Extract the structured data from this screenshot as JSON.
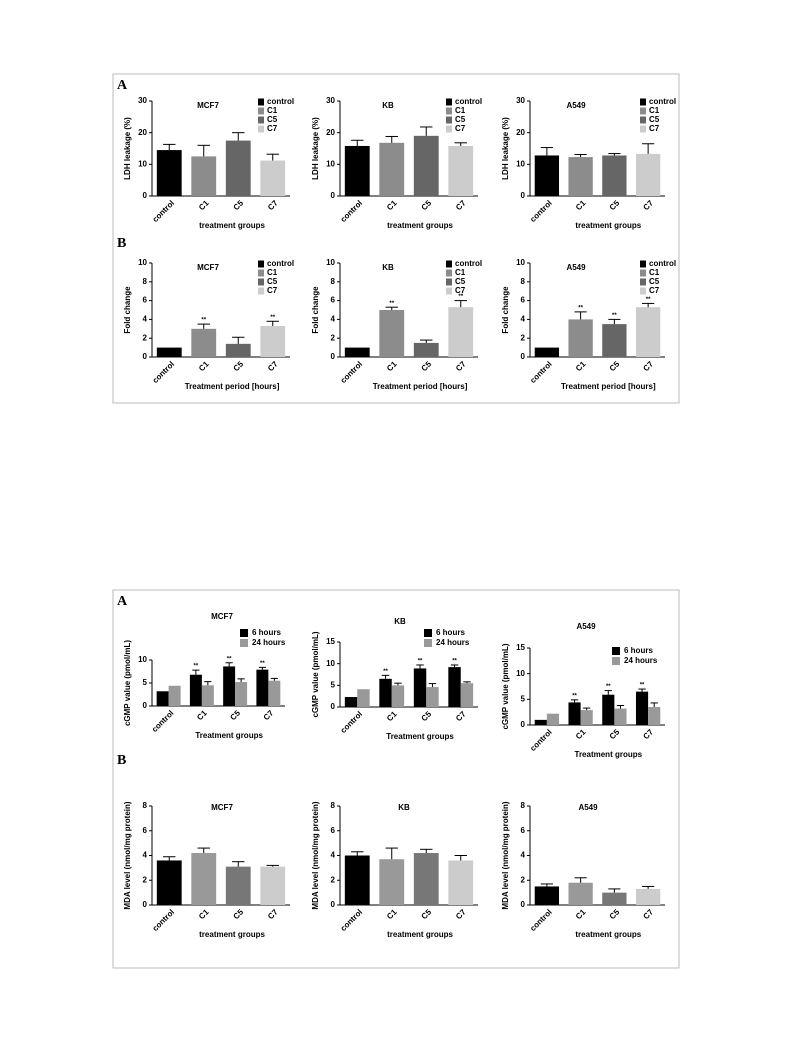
{
  "panel_labels": [
    "A",
    "B",
    "A",
    "B"
  ],
  "chart_data": [
    {
      "type": "bar",
      "title": "MCF7",
      "y_label": "LDH leakage (%)",
      "x_label": "treatment groups",
      "categories": [
        "control",
        "C1",
        "C5",
        "C7"
      ],
      "values": [
        14.5,
        12.5,
        17.5,
        11.2
      ],
      "errors": [
        1.8,
        3.5,
        2.5,
        2
      ],
      "colors": [
        "#000000",
        "#8c8c8c",
        "#666666",
        "#cccccc"
      ],
      "ylim": [
        0,
        30
      ],
      "yticks": [
        0,
        10,
        20,
        30
      ],
      "legend": true
    },
    {
      "type": "bar",
      "title": "KB",
      "y_label": "LDH leakage (%)",
      "x_label": "treatment groups",
      "categories": [
        "control",
        "C1",
        "C5",
        "C7"
      ],
      "values": [
        15.8,
        16.8,
        19,
        15.8
      ],
      "errors": [
        1.8,
        2,
        2.8,
        1
      ],
      "colors": [
        "#000000",
        "#8c8c8c",
        "#666666",
        "#cccccc"
      ],
      "ylim": [
        0,
        30
      ],
      "yticks": [
        0,
        10,
        20,
        30
      ],
      "legend": true
    },
    {
      "type": "bar",
      "title": "A549",
      "y_label": "LDH leakage (%)",
      "x_label": "treatment groups",
      "categories": [
        "control",
        "C1",
        "C5",
        "C7"
      ],
      "values": [
        12.8,
        12.3,
        12.8,
        13.3
      ],
      "errors": [
        2.5,
        0.8,
        0.6,
        3.2
      ],
      "colors": [
        "#000000",
        "#8c8c8c",
        "#666666",
        "#cccccc"
      ],
      "ylim": [
        0,
        30
      ],
      "yticks": [
        0,
        10,
        20,
        30
      ],
      "legend": true
    },
    {
      "type": "bar",
      "title": "MCF7",
      "y_label": "Fold change",
      "x_label": "Treatment period [hours]",
      "categories": [
        "control",
        "C1",
        "C5",
        "C7"
      ],
      "values": [
        1,
        3.0,
        1.4,
        3.3
      ],
      "errors": [
        0,
        0.5,
        0.7,
        0.5
      ],
      "annotations": [
        null,
        "**",
        null,
        "**"
      ],
      "colors": [
        "#000000",
        "#8c8c8c",
        "#666666",
        "#cccccc"
      ],
      "ylim": [
        0,
        10
      ],
      "yticks": [
        0,
        2,
        4,
        6,
        8,
        10
      ],
      "legend": true
    },
    {
      "type": "bar",
      "title": "KB",
      "y_label": "Fold change",
      "x_label": "Treatment period [hours]",
      "categories": [
        "control",
        "C1",
        "C5",
        "C7"
      ],
      "values": [
        1,
        5.0,
        1.5,
        5.3
      ],
      "errors": [
        0,
        0.3,
        0.3,
        0.7
      ],
      "annotations": [
        null,
        "**",
        null,
        "**"
      ],
      "colors": [
        "#000000",
        "#8c8c8c",
        "#666666",
        "#cccccc"
      ],
      "ylim": [
        0,
        10
      ],
      "yticks": [
        0,
        2,
        4,
        6,
        8,
        10
      ],
      "legend": true
    },
    {
      "type": "bar",
      "title": "A549",
      "y_label": "Fold change",
      "x_label": "Treatment period [hours]",
      "categories": [
        "control",
        "C1",
        "C5",
        "C7"
      ],
      "values": [
        1,
        4.0,
        3.5,
        5.3
      ],
      "errors": [
        0,
        0.8,
        0.5,
        0.4
      ],
      "annotations": [
        null,
        "**",
        "**",
        "**"
      ],
      "colors": [
        "#000000",
        "#8c8c8c",
        "#666666",
        "#cccccc"
      ],
      "ylim": [
        0,
        10
      ],
      "yticks": [
        0,
        2,
        4,
        6,
        8,
        10
      ],
      "legend": true
    },
    {
      "type": "grouped_bar",
      "title": "MCF7",
      "y_label": "cGMP value (pmol/mL)",
      "x_label": "Treatment groups",
      "categories": [
        "control",
        "C1",
        "C5",
        "C7"
      ],
      "series": [
        {
          "name": "6 hours",
          "color": "#000000",
          "values": [
            3.2,
            6.8,
            8.6,
            7.9
          ],
          "errors": [
            0,
            1,
            0.8,
            0.5
          ],
          "annotations": [
            null,
            "**",
            "**",
            "**"
          ]
        },
        {
          "name": "24 hours",
          "color": "#999999",
          "values": [
            4.4,
            4.5,
            5.2,
            5.5
          ],
          "errors": [
            0,
            0.8,
            0.7,
            0.5
          ]
        }
      ],
      "ylim": [
        0,
        10
      ],
      "yticks": [
        0,
        5,
        10
      ]
    },
    {
      "type": "grouped_bar",
      "title": "KB",
      "y_label": "cGMP value (pmol/mL)",
      "x_label": "Treatment groups",
      "categories": [
        "control",
        "C1",
        "C5",
        "C7"
      ],
      "series": [
        {
          "name": "6 hours",
          "color": "#000000",
          "values": [
            2.3,
            6.5,
            8.9,
            9.2
          ],
          "errors": [
            0,
            0.8,
            0.8,
            0.5
          ],
          "annotations": [
            null,
            "**",
            "**",
            "**"
          ]
        },
        {
          "name": "24 hours",
          "color": "#999999",
          "values": [
            4.1,
            5.0,
            4.6,
            5.5
          ],
          "errors": [
            0,
            0.5,
            0.8,
            0.3
          ]
        }
      ],
      "ylim": [
        0,
        15
      ],
      "yticks": [
        0,
        5,
        10,
        15
      ]
    },
    {
      "type": "grouped_bar",
      "title": "A549",
      "y_label": "cGMP value (pmol/mL)",
      "x_label": "Treatment groups",
      "categories": [
        "control",
        "C1",
        "C5",
        "C7"
      ],
      "series": [
        {
          "name": "6 hours",
          "color": "#000000",
          "values": [
            1,
            4.4,
            5.9,
            6.5
          ],
          "errors": [
            0,
            0.5,
            0.8,
            0.5
          ],
          "annotations": [
            null,
            "**",
            "**",
            "**"
          ]
        },
        {
          "name": "24 hours",
          "color": "#999999",
          "values": [
            2.2,
            2.9,
            3.2,
            3.5
          ],
          "errors": [
            0,
            0.4,
            0.6,
            0.8
          ]
        }
      ],
      "ylim": [
        0,
        15
      ],
      "yticks": [
        0,
        5,
        10,
        15
      ]
    },
    {
      "type": "bar",
      "title": "MCF7",
      "y_label": "MDA level (nmol/mg protein)",
      "x_label": "treatment groups",
      "categories": [
        "control",
        "C1",
        "C5",
        "C7"
      ],
      "values": [
        3.6,
        4.2,
        3.1,
        3.1
      ],
      "errors": [
        0.3,
        0.4,
        0.4,
        0.1
      ],
      "colors": [
        "#000000",
        "#999999",
        "#777777",
        "#cccccc"
      ],
      "ylim": [
        0,
        8
      ],
      "yticks": [
        0,
        2,
        4,
        6,
        8
      ],
      "legend": false
    },
    {
      "type": "bar",
      "title": "KB",
      "y_label": "MDA level (nmol/mg protein)",
      "x_label": "treatment groups",
      "categories": [
        "control",
        "C1",
        "C5",
        "C7"
      ],
      "values": [
        4.0,
        3.7,
        4.2,
        3.6
      ],
      "errors": [
        0.3,
        0.9,
        0.3,
        0.4
      ],
      "colors": [
        "#000000",
        "#999999",
        "#777777",
        "#cccccc"
      ],
      "ylim": [
        0,
        8
      ],
      "yticks": [
        0,
        2,
        4,
        6,
        8
      ],
      "legend": false
    },
    {
      "type": "bar",
      "title": "A549",
      "y_label": "MDA level (nmol/mg protein)",
      "x_label": "treatment groups",
      "categories": [
        "control",
        "C1",
        "C5",
        "C7"
      ],
      "values": [
        1.5,
        1.8,
        1.0,
        1.3
      ],
      "errors": [
        0.2,
        0.4,
        0.3,
        0.2
      ],
      "colors": [
        "#000000",
        "#999999",
        "#777777",
        "#cccccc"
      ],
      "ylim": [
        0,
        8
      ],
      "yticks": [
        0,
        2,
        4,
        6,
        8
      ],
      "legend": false
    }
  ]
}
